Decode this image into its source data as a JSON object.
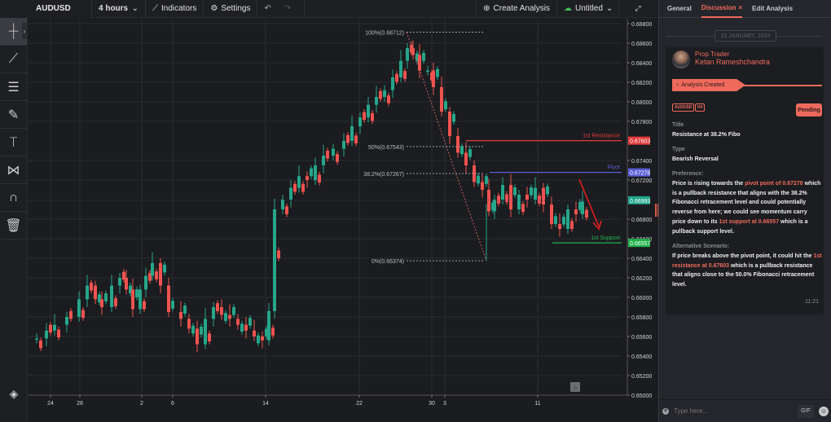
{
  "toolbar": {
    "symbol": "AUDUSD",
    "timeframe": "4 hours",
    "indicators_label": "Indicators",
    "settings_label": "Settings",
    "create_analysis_label": "Create Analysis",
    "layout_name": "Untitled"
  },
  "left_tools": [
    {
      "name": "crosshair-tool",
      "glyph": "+"
    },
    {
      "name": "trendline-tool",
      "glyph": "⟋"
    },
    {
      "name": "fib-retracement-tool",
      "glyph": "≡"
    },
    {
      "name": "brush-tool",
      "glyph": "✎"
    },
    {
      "name": "text-tool",
      "glyph": "T"
    },
    {
      "name": "pattern-tool",
      "glyph": "⋈"
    },
    {
      "name": "magnet-tool",
      "glyph": "∩"
    },
    {
      "name": "trash-tool",
      "glyph": "🗑"
    }
  ],
  "chart": {
    "price_axis": [
      "0.68800",
      "0.68600",
      "0.68400",
      "0.68200",
      "0.68000",
      "0.67800",
      "0.67400",
      "0.67200",
      "0.66800",
      "0.66600",
      "0.66400",
      "0.66200",
      "0.66000",
      "0.65800",
      "0.65600",
      "0.65400",
      "0.65200",
      "0.65000"
    ],
    "price_badges": {
      "resistance": {
        "value": "0.67603",
        "color": "#e03b3b"
      },
      "pivot": {
        "value": "0.67278",
        "color": "#5b5fd6"
      },
      "current": {
        "value": "0.66993",
        "color": "#1fa58a"
      },
      "support": {
        "value": "0.66557",
        "color": "#22b14c"
      }
    },
    "x_axis": [
      "24",
      "28",
      "2",
      "6",
      "14",
      "22",
      "30",
      "3",
      "11"
    ],
    "fib_labels": {
      "level_100": "100%(0.68712)",
      "level_50": "50%(0.67543)",
      "level_38": "38.2%(0.67267)",
      "level_0": "0%(0.66374)"
    },
    "line_labels": {
      "resistance": "1st Resistance",
      "pivot": "Pivot",
      "support": "1st Support"
    },
    "colors": {
      "up": "#26a68a",
      "down": "#ef5350"
    }
  },
  "panel": {
    "tabs": [
      {
        "label": "General"
      },
      {
        "label": "Discussion",
        "active": true
      },
      {
        "label": "Edit Analysis"
      }
    ],
    "date": "15 JANUARY, 2024",
    "author_role": "Prop Trader",
    "author_name": "Ketan Rameshchandra",
    "status_event": "Analysis Created",
    "chips": [
      "AUDUSD",
      "H4"
    ],
    "status_badge": "Pending",
    "title_label": "Title",
    "title_value": "Resistance at 38.2% Fibo",
    "type_label": "Type",
    "type_value": "Bearish Reversal",
    "preference_label": "Preference:",
    "preference": {
      "p1": "Price is rising towards the ",
      "h1": "pivot point of 0.67278",
      "p2": " which is a pullback resistance that aligns with the 38.2% Fibonacci retracement level and could potentially reverse from here; we could see momentum carry price down to its ",
      "h2": "1st support at 0.66557",
      "p3": " which is a pullback support level."
    },
    "alt_label": "Alternative Scenario:",
    "alternative": {
      "p1": "If price breaks above the pivot point, it could hit the ",
      "h1": "1st resistance at 0.67603",
      "p2": " which is a pullback resistance that aligns close to the 50.0% Fibonacci retracement level."
    },
    "time": "11:21",
    "composer_placeholder": "Type here...",
    "gif_label": "GIF",
    "accent": "#ef6a5c"
  }
}
